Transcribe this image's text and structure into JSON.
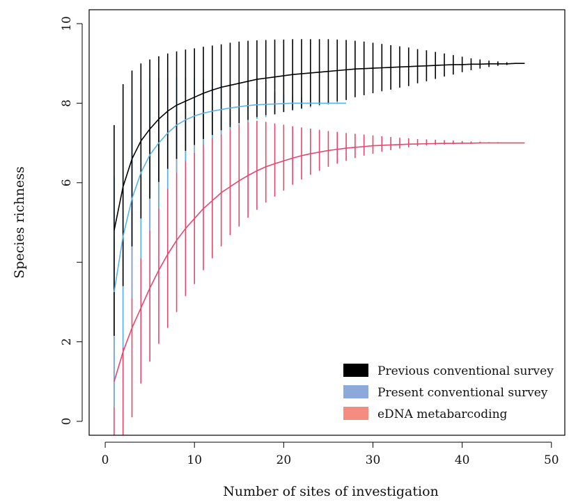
{
  "chart_data": {
    "type": "line",
    "title": "",
    "xlabel": "Number of sites of investigation",
    "ylabel": "Species richness",
    "xlim": [
      -1.8,
      51.5
    ],
    "ylim": [
      -0.35,
      10.35
    ],
    "x_ticks": [
      0,
      10,
      20,
      30,
      40,
      50
    ],
    "y_ticks": [
      0,
      2,
      6,
      8,
      10
    ],
    "y_tick_labels": [
      "0",
      "2",
      "6",
      "8",
      "10"
    ],
    "grid": false,
    "legend_position": "bottom-right",
    "series": [
      {
        "name": "Previous conventional survey",
        "color": "#000000",
        "legend_color": "#000000",
        "mean": [
          4.8,
          5.9,
          6.6,
          7.05,
          7.35,
          7.6,
          7.8,
          7.95,
          8.05,
          8.15,
          8.25,
          8.33,
          8.4,
          8.45,
          8.5,
          8.55,
          8.6,
          8.63,
          8.66,
          8.69,
          8.72,
          8.74,
          8.76,
          8.78,
          8.8,
          8.82,
          8.84,
          8.86,
          8.87,
          8.88,
          8.89,
          8.9,
          8.91,
          8.92,
          8.93,
          8.94,
          8.95,
          8.96,
          8.97,
          8.97,
          8.98,
          8.98,
          8.99,
          8.99,
          8.99,
          9.0,
          9.0
        ],
        "upper": [
          7.45,
          8.48,
          8.82,
          9.0,
          9.1,
          9.18,
          9.25,
          9.3,
          9.35,
          9.38,
          9.42,
          9.45,
          9.48,
          9.52,
          9.55,
          9.57,
          9.58,
          9.59,
          9.6,
          9.6,
          9.61,
          9.61,
          9.61,
          9.61,
          9.61,
          9.6,
          9.59,
          9.57,
          9.55,
          9.52,
          9.49,
          9.46,
          9.43,
          9.4,
          9.36,
          9.33,
          9.29,
          9.25,
          9.21,
          9.17,
          9.13,
          9.1,
          9.07,
          9.05,
          9.03,
          9.01,
          9.0
        ],
        "lower": [
          2.15,
          3.4,
          4.4,
          5.1,
          5.6,
          6.02,
          6.35,
          6.6,
          6.8,
          6.95,
          7.1,
          7.2,
          7.32,
          7.4,
          7.5,
          7.58,
          7.65,
          7.7,
          7.72,
          7.78,
          7.83,
          7.87,
          7.92,
          7.96,
          8.0,
          8.04,
          8.08,
          8.15,
          8.2,
          8.25,
          8.3,
          8.34,
          8.39,
          8.43,
          8.5,
          8.55,
          8.61,
          8.67,
          8.72,
          8.78,
          8.83,
          8.87,
          8.91,
          8.94,
          8.96,
          8.99,
          9.0
        ]
      },
      {
        "name": "Present conventional survey",
        "color": "#56B4E9",
        "legend_color": "#8DA9DB",
        "mean": [
          3.25,
          4.65,
          5.6,
          6.25,
          6.7,
          7.0,
          7.25,
          7.45,
          7.58,
          7.68,
          7.75,
          7.8,
          7.84,
          7.88,
          7.91,
          7.94,
          7.96,
          7.97,
          7.98,
          7.99,
          8.0,
          8.0,
          8.0,
          8.0,
          8.0,
          8.0,
          8.0
        ],
        "upper": [
          6.15,
          7.45,
          8.1,
          8.42,
          8.58,
          8.64,
          8.66,
          8.66,
          8.65,
          8.63,
          8.6,
          8.57,
          8.53,
          8.49,
          8.45,
          8.41,
          8.36,
          8.32,
          8.27,
          8.23,
          8.19,
          8.15,
          8.12,
          8.08,
          8.05,
          8.03,
          8.0
        ],
        "lower": [
          0.35,
          1.85,
          3.1,
          4.1,
          4.8,
          5.35,
          5.85,
          6.25,
          6.55,
          6.75,
          6.95,
          7.12,
          7.22,
          7.35,
          7.45,
          7.52,
          7.6,
          7.65,
          7.72,
          7.77,
          7.81,
          7.85,
          7.89,
          7.93,
          7.96,
          7.98,
          8.0
        ]
      },
      {
        "name": "eDNA metabarcoding",
        "color": "#E4476E",
        "legend_color": "#F48C7F",
        "mean": [
          1.0,
          1.75,
          2.35,
          2.85,
          3.35,
          3.8,
          4.2,
          4.55,
          4.85,
          5.1,
          5.35,
          5.55,
          5.75,
          5.9,
          6.05,
          6.18,
          6.3,
          6.4,
          6.48,
          6.55,
          6.62,
          6.68,
          6.73,
          6.77,
          6.81,
          6.84,
          6.87,
          6.89,
          6.91,
          6.93,
          6.94,
          6.95,
          6.96,
          6.97,
          6.975,
          6.98,
          6.985,
          6.99,
          6.99,
          6.995,
          6.995,
          7.0,
          7.0,
          7.0,
          7.0,
          7.0,
          7.0
        ],
        "upper": [
          4.6,
          5.8,
          6.55,
          7.1,
          7.45,
          7.65,
          7.75,
          7.8,
          7.8,
          7.78,
          7.75,
          7.72,
          7.7,
          7.66,
          7.63,
          7.6,
          7.56,
          7.53,
          7.49,
          7.46,
          7.42,
          7.39,
          7.36,
          7.33,
          7.3,
          7.28,
          7.25,
          7.23,
          7.21,
          7.19,
          7.17,
          7.15,
          7.13,
          7.12,
          7.1,
          7.09,
          7.08,
          7.07,
          7.06,
          7.05,
          7.04,
          7.03,
          7.02,
          7.02,
          7.01,
          7.01,
          7.0
        ],
        "lower": [
          -0.35,
          -0.35,
          0.1,
          0.95,
          1.5,
          1.95,
          2.35,
          2.75,
          3.15,
          3.45,
          3.8,
          4.1,
          4.4,
          4.68,
          4.9,
          5.12,
          5.32,
          5.5,
          5.65,
          5.8,
          5.95,
          6.08,
          6.2,
          6.3,
          6.4,
          6.48,
          6.55,
          6.62,
          6.68,
          6.73,
          6.78,
          6.82,
          6.86,
          6.89,
          6.92,
          6.94,
          6.95,
          6.96,
          6.97,
          6.975,
          6.98,
          6.985,
          6.99,
          6.99,
          6.995,
          7.0,
          7.0
        ]
      }
    ]
  }
}
